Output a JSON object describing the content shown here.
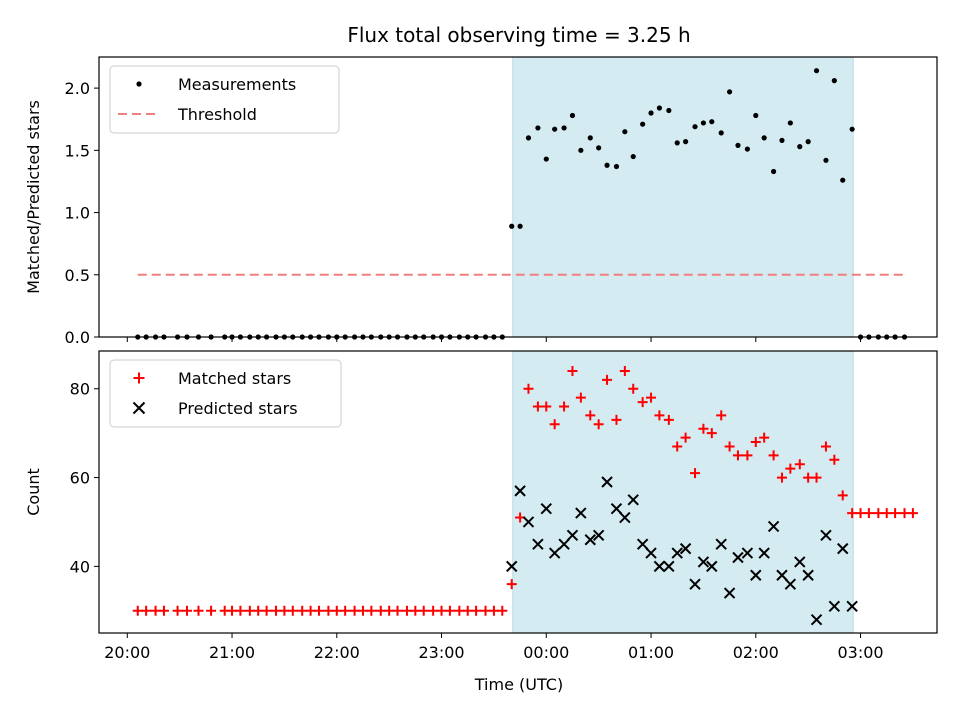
{
  "chart_data": {
    "type": "scatter",
    "title": "Flux total observing time = 3.25 h",
    "xlabel": "Time (UTC)",
    "x_ticks": [
      "20:00",
      "21:00",
      "22:00",
      "23:00",
      "00:00",
      "01:00",
      "02:00",
      "03:00"
    ],
    "x_range_hours": [
      19.73,
      27.73
    ],
    "observing_window_hours": [
      23.68,
      26.93
    ],
    "window_color": "#d3ebf1",
    "panels": [
      {
        "ylabel": "Matched/Predicted stars",
        "ylim": [
          0,
          2.25
        ],
        "y_ticks": [
          "0.0",
          "0.5",
          "1.0",
          "1.5",
          "2.0"
        ],
        "y_tick_values": [
          0,
          0.5,
          1.0,
          1.5,
          2.0
        ],
        "legend_position": "top-left",
        "series": [
          {
            "name": "Measurements",
            "marker": "dot",
            "color": "#000000",
            "points": [
              [
                20.1,
                0
              ],
              [
                20.18,
                0
              ],
              [
                20.27,
                0
              ],
              [
                20.35,
                0
              ],
              [
                20.48,
                0
              ],
              [
                20.57,
                0
              ],
              [
                20.68,
                0
              ],
              [
                20.8,
                0
              ],
              [
                20.93,
                0
              ],
              [
                21.0,
                0
              ],
              [
                21.08,
                0
              ],
              [
                21.17,
                0
              ],
              [
                21.25,
                0
              ],
              [
                21.33,
                0
              ],
              [
                21.42,
                0
              ],
              [
                21.5,
                0
              ],
              [
                21.58,
                0
              ],
              [
                21.67,
                0
              ],
              [
                21.75,
                0
              ],
              [
                21.83,
                0
              ],
              [
                21.92,
                0
              ],
              [
                22.0,
                0
              ],
              [
                22.08,
                0
              ],
              [
                22.17,
                0
              ],
              [
                22.25,
                0
              ],
              [
                22.33,
                0
              ],
              [
                22.42,
                0
              ],
              [
                22.5,
                0
              ],
              [
                22.58,
                0
              ],
              [
                22.67,
                0
              ],
              [
                22.75,
                0
              ],
              [
                22.83,
                0
              ],
              [
                22.92,
                0
              ],
              [
                23.0,
                0
              ],
              [
                23.08,
                0
              ],
              [
                23.17,
                0
              ],
              [
                23.25,
                0
              ],
              [
                23.33,
                0
              ],
              [
                23.42,
                0
              ],
              [
                23.5,
                0
              ],
              [
                23.58,
                0
              ],
              [
                23.67,
                0.89
              ],
              [
                23.75,
                0.89
              ],
              [
                23.83,
                1.6
              ],
              [
                23.92,
                1.68
              ],
              [
                24.0,
                1.43
              ],
              [
                24.08,
                1.67
              ],
              [
                24.17,
                1.68
              ],
              [
                24.25,
                1.78
              ],
              [
                24.33,
                1.5
              ],
              [
                24.42,
                1.6
              ],
              [
                24.5,
                1.52
              ],
              [
                24.58,
                1.38
              ],
              [
                24.67,
                1.37
              ],
              [
                24.75,
                1.65
              ],
              [
                24.83,
                1.45
              ],
              [
                24.92,
                1.71
              ],
              [
                25.0,
                1.8
              ],
              [
                25.08,
                1.84
              ],
              [
                25.17,
                1.82
              ],
              [
                25.25,
                1.56
              ],
              [
                25.33,
                1.57
              ],
              [
                25.42,
                1.69
              ],
              [
                25.5,
                1.72
              ],
              [
                25.58,
                1.73
              ],
              [
                25.67,
                1.64
              ],
              [
                25.75,
                1.97
              ],
              [
                25.83,
                1.54
              ],
              [
                25.92,
                1.51
              ],
              [
                26.0,
                1.78
              ],
              [
                26.08,
                1.6
              ],
              [
                26.17,
                1.33
              ],
              [
                26.25,
                1.58
              ],
              [
                26.33,
                1.72
              ],
              [
                26.42,
                1.53
              ],
              [
                26.5,
                1.57
              ],
              [
                26.58,
                2.14
              ],
              [
                26.67,
                1.42
              ],
              [
                26.75,
                2.06
              ],
              [
                26.83,
                1.26
              ],
              [
                26.92,
                1.67
              ],
              [
                27.0,
                0
              ],
              [
                27.08,
                0
              ],
              [
                27.17,
                0
              ],
              [
                27.25,
                0
              ],
              [
                27.33,
                0
              ],
              [
                27.42,
                0
              ]
            ]
          },
          {
            "name": "Threshold",
            "marker": "dashed-line",
            "color": "#f08080",
            "points": [
              [
                20.1,
                0.5
              ],
              [
                27.42,
                0.5
              ]
            ]
          }
        ]
      },
      {
        "ylabel": "Count",
        "ylim": [
          25,
          88.5
        ],
        "y_ticks": [
          "40",
          "60",
          "80"
        ],
        "y_tick_values": [
          40,
          60,
          80
        ],
        "legend_position": "top-left",
        "series": [
          {
            "name": "Matched stars",
            "marker": "plus",
            "color": "#ff0000",
            "points": [
              [
                20.1,
                30
              ],
              [
                20.18,
                30
              ],
              [
                20.27,
                30
              ],
              [
                20.35,
                30
              ],
              [
                20.48,
                30
              ],
              [
                20.57,
                30
              ],
              [
                20.68,
                30
              ],
              [
                20.8,
                30
              ],
              [
                20.93,
                30
              ],
              [
                21.0,
                30
              ],
              [
                21.08,
                30
              ],
              [
                21.17,
                30
              ],
              [
                21.25,
                30
              ],
              [
                21.33,
                30
              ],
              [
                21.42,
                30
              ],
              [
                21.5,
                30
              ],
              [
                21.58,
                30
              ],
              [
                21.67,
                30
              ],
              [
                21.75,
                30
              ],
              [
                21.83,
                30
              ],
              [
                21.92,
                30
              ],
              [
                22.0,
                30
              ],
              [
                22.08,
                30
              ],
              [
                22.17,
                30
              ],
              [
                22.25,
                30
              ],
              [
                22.33,
                30
              ],
              [
                22.42,
                30
              ],
              [
                22.5,
                30
              ],
              [
                22.58,
                30
              ],
              [
                22.67,
                30
              ],
              [
                22.75,
                30
              ],
              [
                22.83,
                30
              ],
              [
                22.92,
                30
              ],
              [
                23.0,
                30
              ],
              [
                23.08,
                30
              ],
              [
                23.17,
                30
              ],
              [
                23.25,
                30
              ],
              [
                23.33,
                30
              ],
              [
                23.42,
                30
              ],
              [
                23.5,
                30
              ],
              [
                23.58,
                30
              ],
              [
                23.67,
                36
              ],
              [
                23.75,
                51
              ],
              [
                23.83,
                80
              ],
              [
                23.92,
                76
              ],
              [
                24.0,
                76
              ],
              [
                24.08,
                72
              ],
              [
                24.17,
                76
              ],
              [
                24.25,
                84
              ],
              [
                24.33,
                78
              ],
              [
                24.42,
                74
              ],
              [
                24.5,
                72
              ],
              [
                24.58,
                82
              ],
              [
                24.67,
                73
              ],
              [
                24.75,
                84
              ],
              [
                24.83,
                80
              ],
              [
                24.92,
                77
              ],
              [
                25.0,
                78
              ],
              [
                25.08,
                74
              ],
              [
                25.17,
                73
              ],
              [
                25.25,
                67
              ],
              [
                25.33,
                69
              ],
              [
                25.42,
                61
              ],
              [
                25.5,
                71
              ],
              [
                25.58,
                70
              ],
              [
                25.67,
                74
              ],
              [
                25.75,
                67
              ],
              [
                25.83,
                65
              ],
              [
                25.92,
                65
              ],
              [
                26.0,
                68
              ],
              [
                26.08,
                69
              ],
              [
                26.17,
                65
              ],
              [
                26.25,
                60
              ],
              [
                26.33,
                62
              ],
              [
                26.42,
                63
              ],
              [
                26.5,
                60
              ],
              [
                26.58,
                60
              ],
              [
                26.67,
                67
              ],
              [
                26.75,
                64
              ],
              [
                26.83,
                56
              ],
              [
                26.92,
                52
              ],
              [
                27.0,
                52
              ],
              [
                27.08,
                52
              ],
              [
                27.17,
                52
              ],
              [
                27.25,
                52
              ],
              [
                27.33,
                52
              ],
              [
                27.42,
                52
              ],
              [
                27.5,
                52
              ]
            ]
          },
          {
            "name": "Predicted stars",
            "marker": "x",
            "color": "#000000",
            "points": [
              [
                23.67,
                40
              ],
              [
                23.75,
                57
              ],
              [
                23.83,
                50
              ],
              [
                23.92,
                45
              ],
              [
                24.0,
                53
              ],
              [
                24.08,
                43
              ],
              [
                24.17,
                45
              ],
              [
                24.25,
                47
              ],
              [
                24.33,
                52
              ],
              [
                24.42,
                46
              ],
              [
                24.5,
                47
              ],
              [
                24.58,
                59
              ],
              [
                24.67,
                53
              ],
              [
                24.75,
                51
              ],
              [
                24.83,
                55
              ],
              [
                24.92,
                45
              ],
              [
                25.0,
                43
              ],
              [
                25.08,
                40
              ],
              [
                25.17,
                40
              ],
              [
                25.25,
                43
              ],
              [
                25.33,
                44
              ],
              [
                25.42,
                36
              ],
              [
                25.5,
                41
              ],
              [
                25.58,
                40
              ],
              [
                25.67,
                45
              ],
              [
                25.75,
                34
              ],
              [
                25.83,
                42
              ],
              [
                25.92,
                43
              ],
              [
                26.0,
                38
              ],
              [
                26.08,
                43
              ],
              [
                26.17,
                49
              ],
              [
                26.25,
                38
              ],
              [
                26.33,
                36
              ],
              [
                26.42,
                41
              ],
              [
                26.5,
                38
              ],
              [
                26.58,
                28
              ],
              [
                26.67,
                47
              ],
              [
                26.75,
                31
              ],
              [
                26.83,
                44
              ],
              [
                26.92,
                31
              ]
            ]
          }
        ]
      }
    ]
  }
}
